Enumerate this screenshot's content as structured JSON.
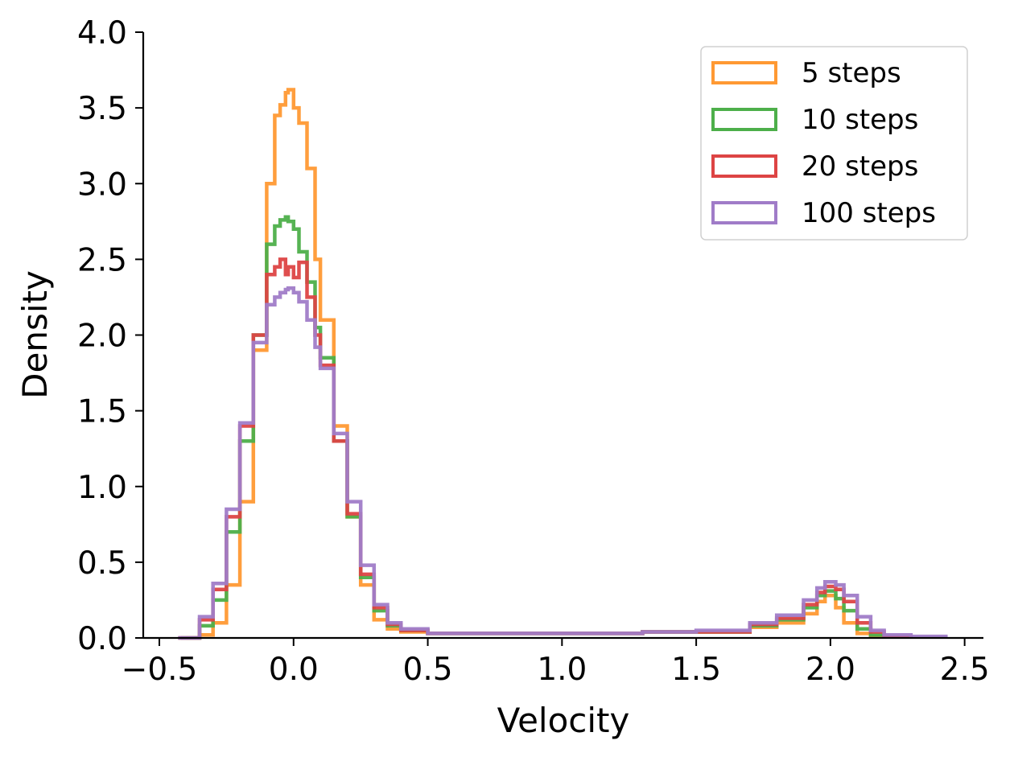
{
  "chart_data": {
    "type": "histogram-step",
    "xlabel": "Velocity",
    "ylabel": "Density",
    "xlim": [
      -0.56,
      2.57
    ],
    "ylim": [
      0,
      4.0
    ],
    "xticks": [
      -0.5,
      0.0,
      0.5,
      1.0,
      1.5,
      2.0,
      2.5
    ],
    "xtick_labels": [
      "−0.5",
      "0.0",
      "0.5",
      "1.0",
      "1.5",
      "2.0",
      "2.5"
    ],
    "yticks": [
      0.0,
      0.5,
      1.0,
      1.5,
      2.0,
      2.5,
      3.0,
      3.5,
      4.0
    ],
    "ytick_labels": [
      "0.0",
      "0.5",
      "1.0",
      "1.5",
      "2.0",
      "2.5",
      "3.0",
      "3.5",
      "4.0"
    ],
    "legend_position": "top-right",
    "grid": false,
    "series": [
      {
        "name": "5 steps",
        "color": "#ff9933",
        "x": [
          -0.4,
          -0.35,
          -0.3,
          -0.25,
          -0.2,
          -0.15,
          -0.1,
          -0.07,
          -0.05,
          -0.03,
          -0.02,
          0.0,
          0.02,
          0.05,
          0.08,
          0.1,
          0.15,
          0.2,
          0.25,
          0.3,
          0.35,
          0.4,
          0.5,
          0.7,
          1.0,
          1.3,
          1.5,
          1.7,
          1.8,
          1.9,
          1.95,
          1.98,
          2.02,
          2.05,
          2.1,
          2.15,
          2.2
        ],
        "y": [
          0.0,
          0.02,
          0.1,
          0.35,
          0.9,
          1.9,
          3.0,
          3.45,
          3.52,
          3.6,
          3.62,
          3.5,
          3.4,
          3.1,
          2.5,
          2.1,
          1.4,
          0.8,
          0.35,
          0.12,
          0.06,
          0.04,
          0.03,
          0.03,
          0.03,
          0.04,
          0.04,
          0.07,
          0.1,
          0.16,
          0.24,
          0.28,
          0.2,
          0.1,
          0.03,
          0.01,
          0.0
        ]
      },
      {
        "name": "10 steps",
        "color": "#4daf4a",
        "x": [
          -0.42,
          -0.35,
          -0.3,
          -0.25,
          -0.2,
          -0.15,
          -0.1,
          -0.07,
          -0.05,
          -0.03,
          -0.02,
          0.0,
          0.02,
          0.05,
          0.08,
          0.1,
          0.15,
          0.2,
          0.25,
          0.3,
          0.35,
          0.4,
          0.5,
          0.7,
          1.0,
          1.3,
          1.5,
          1.7,
          1.8,
          1.9,
          1.95,
          1.98,
          2.02,
          2.05,
          2.1,
          2.15,
          2.2,
          2.25
        ],
        "y": [
          0.0,
          0.08,
          0.25,
          0.7,
          1.3,
          2.0,
          2.6,
          2.72,
          2.76,
          2.78,
          2.75,
          2.7,
          2.55,
          2.35,
          2.05,
          1.85,
          1.3,
          0.8,
          0.4,
          0.18,
          0.08,
          0.05,
          0.03,
          0.03,
          0.03,
          0.04,
          0.04,
          0.08,
          0.12,
          0.2,
          0.28,
          0.31,
          0.26,
          0.18,
          0.06,
          0.02,
          0.01,
          0.0
        ]
      },
      {
        "name": "20 steps",
        "color": "#dd4444",
        "x": [
          -0.43,
          -0.35,
          -0.3,
          -0.25,
          -0.2,
          -0.15,
          -0.1,
          -0.07,
          -0.05,
          -0.03,
          -0.02,
          0.0,
          0.02,
          0.05,
          0.08,
          0.1,
          0.15,
          0.2,
          0.25,
          0.3,
          0.35,
          0.4,
          0.5,
          0.7,
          1.0,
          1.3,
          1.5,
          1.7,
          1.8,
          1.9,
          1.95,
          1.98,
          2.02,
          2.05,
          2.1,
          2.15,
          2.2,
          2.3
        ],
        "y": [
          0.0,
          0.12,
          0.32,
          0.8,
          1.4,
          2.0,
          2.4,
          2.45,
          2.5,
          2.4,
          2.45,
          2.38,
          2.48,
          2.25,
          2.0,
          1.8,
          1.3,
          0.82,
          0.42,
          0.2,
          0.09,
          0.05,
          0.03,
          0.03,
          0.03,
          0.04,
          0.04,
          0.09,
          0.13,
          0.22,
          0.3,
          0.34,
          0.32,
          0.24,
          0.1,
          0.04,
          0.01,
          0.0
        ]
      },
      {
        "name": "100 steps",
        "color": "#a07cc8",
        "x": [
          -0.43,
          -0.35,
          -0.3,
          -0.25,
          -0.2,
          -0.15,
          -0.1,
          -0.07,
          -0.05,
          -0.03,
          -0.02,
          0.0,
          0.02,
          0.05,
          0.08,
          0.1,
          0.15,
          0.2,
          0.25,
          0.3,
          0.35,
          0.4,
          0.5,
          0.7,
          1.0,
          1.3,
          1.5,
          1.7,
          1.8,
          1.9,
          1.95,
          1.98,
          2.02,
          2.05,
          2.1,
          2.15,
          2.2,
          2.3,
          2.43
        ],
        "y": [
          0.0,
          0.14,
          0.36,
          0.85,
          1.42,
          1.95,
          2.2,
          2.25,
          2.28,
          2.3,
          2.31,
          2.28,
          2.22,
          2.1,
          1.92,
          1.78,
          1.35,
          0.9,
          0.48,
          0.22,
          0.1,
          0.06,
          0.03,
          0.03,
          0.03,
          0.04,
          0.05,
          0.1,
          0.15,
          0.25,
          0.33,
          0.37,
          0.35,
          0.28,
          0.14,
          0.05,
          0.02,
          0.01,
          0.0
        ]
      }
    ]
  }
}
